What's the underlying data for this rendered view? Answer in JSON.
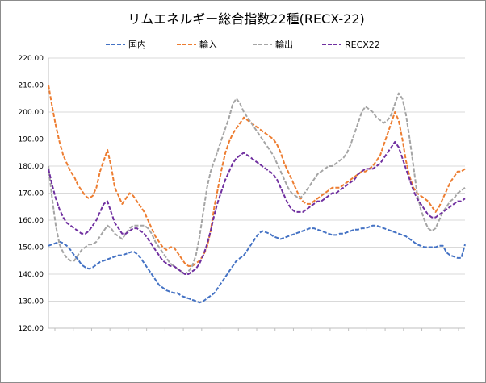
{
  "chart_data": {
    "type": "line",
    "title": "リムエネルギー総合指数22種(RECX-22)",
    "xlabel": "",
    "ylabel": "",
    "ylim": [
      120.0,
      220.0
    ],
    "yticks": [
      "220.00",
      "210.00",
      "200.00",
      "190.00",
      "180.00",
      "170.00",
      "160.00",
      "150.00",
      "140.00",
      "130.00",
      "120.00"
    ],
    "x_tick_count": 23,
    "x_tick_text": "unreadable",
    "grid": "horizontal",
    "legend": "top",
    "series": [
      {
        "name": "国内",
        "color": "#4472c4",
        "values": [
          150.5,
          151,
          151.5,
          152,
          151.5,
          150.5,
          149,
          147,
          145.5,
          143.5,
          142.5,
          142,
          142.5,
          143.5,
          144.5,
          145,
          145.5,
          146,
          146.5,
          147,
          147,
          147.5,
          148,
          148.5,
          147.5,
          146,
          144,
          142,
          140,
          138,
          136,
          135,
          134,
          133.5,
          133,
          133,
          132,
          131.5,
          131,
          130.5,
          130,
          129.5,
          130,
          131,
          132,
          133,
          135,
          137,
          139,
          141,
          143,
          145,
          146,
          147,
          149,
          151,
          153,
          155,
          156,
          155.5,
          155,
          154,
          153.5,
          153,
          153.5,
          154,
          154.5,
          155,
          155.5,
          156,
          156.5,
          157,
          157,
          156.5,
          156,
          155.5,
          155,
          154.5,
          154.5,
          155,
          155,
          155.5,
          156,
          156.5,
          156.5,
          157,
          157,
          157.5,
          158,
          158,
          157.5,
          157,
          156.5,
          156,
          155.5,
          155,
          154.5,
          154,
          153,
          152,
          151,
          150.5,
          150,
          150,
          150,
          150,
          150.5,
          150.5,
          148,
          147,
          146.5,
          146,
          146,
          151
        ]
      },
      {
        "name": "輸入",
        "color": "#ed7d31",
        "values": [
          210,
          202,
          195,
          189,
          184,
          181,
          178,
          176,
          173,
          171,
          169,
          168,
          169,
          172,
          178,
          182,
          186,
          180,
          172,
          169,
          166,
          168,
          170,
          169,
          167,
          165,
          163,
          160,
          157,
          154,
          152,
          150,
          149,
          150,
          150,
          148,
          146,
          144,
          143,
          143,
          144,
          145,
          147,
          150,
          156,
          165,
          172,
          179,
          185,
          189,
          192,
          194,
          196,
          198,
          197,
          196,
          195,
          194,
          193,
          192,
          191,
          190,
          188,
          185,
          181,
          178,
          175,
          172,
          169,
          167,
          166,
          166,
          167,
          168,
          169,
          170,
          171,
          172,
          172,
          172,
          173,
          174,
          175,
          176,
          177,
          178,
          178,
          179,
          180,
          182,
          184,
          188,
          192,
          196,
          200,
          197,
          190,
          182,
          176,
          172,
          170,
          169,
          168,
          167,
          165,
          163,
          165,
          168,
          171,
          174,
          176,
          178,
          178,
          179
        ]
      },
      {
        "name": "輸出",
        "color": "#a5a5a5",
        "values": [
          180,
          168,
          158,
          151,
          148,
          146,
          145,
          145,
          147,
          149,
          150,
          151,
          151,
          152,
          154,
          156,
          158,
          157,
          155,
          154,
          153,
          155,
          157,
          158,
          158,
          158,
          158,
          157,
          155,
          152,
          150,
          148,
          146,
          144,
          143,
          142,
          141,
          140,
          141,
          143,
          147,
          154,
          163,
          172,
          178,
          182,
          186,
          190,
          194,
          198,
          203,
          205,
          203,
          200,
          198,
          196,
          194,
          192,
          190,
          188,
          186,
          184,
          181,
          178,
          175,
          172,
          170,
          169,
          168,
          169,
          171,
          173,
          175,
          177,
          178,
          179,
          180,
          180,
          181,
          182,
          183,
          185,
          188,
          192,
          196,
          200,
          202,
          201,
          200,
          198,
          197,
          196,
          197,
          199,
          203,
          207,
          205,
          199,
          190,
          180,
          170,
          164,
          160,
          157,
          156,
          157,
          160,
          163,
          165,
          167,
          168,
          170,
          171,
          172
        ]
      },
      {
        "name": "RECX22",
        "color": "#7030a0",
        "values": [
          179,
          173,
          168,
          164,
          161,
          159,
          158,
          157,
          156,
          155,
          155,
          156,
          158,
          160,
          163,
          166,
          167,
          163,
          159,
          157,
          155,
          155,
          156,
          157,
          157,
          156,
          155,
          153,
          151,
          149,
          147,
          145,
          144,
          143,
          143,
          142,
          141,
          140,
          140,
          141,
          142,
          144,
          147,
          151,
          156,
          162,
          167,
          171,
          175,
          178,
          181,
          183,
          184,
          185,
          184,
          183,
          182,
          181,
          180,
          179,
          178,
          177,
          175,
          172,
          169,
          166,
          164,
          163,
          163,
          163,
          164,
          165,
          166,
          167,
          167,
          168,
          169,
          170,
          170,
          171,
          172,
          173,
          174,
          175,
          177,
          178,
          179,
          179,
          179,
          180,
          181,
          183,
          185,
          187,
          189,
          187,
          183,
          179,
          175,
          171,
          168,
          166,
          164,
          162,
          161,
          161,
          162,
          163,
          164,
          165,
          166,
          167,
          167,
          168
        ]
      }
    ]
  }
}
